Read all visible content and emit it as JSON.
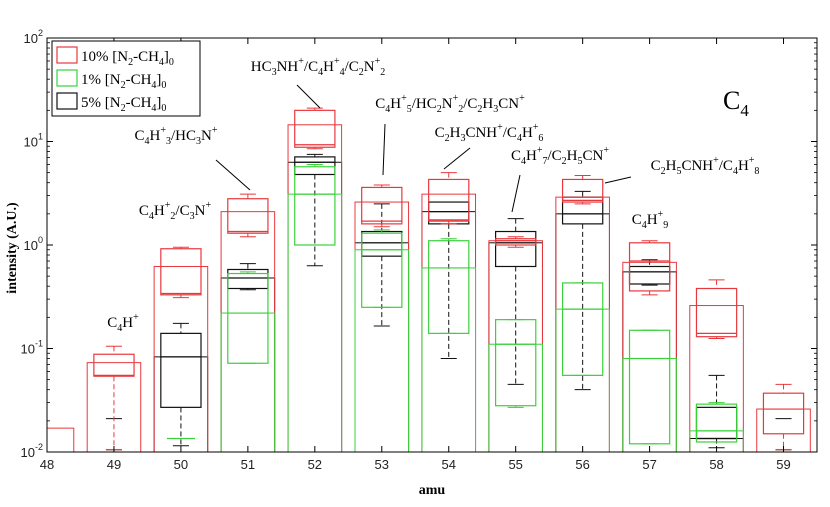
{
  "chart_data": {
    "type": "box",
    "title": "",
    "panel_label": "C4",
    "xlabel": "amu",
    "ylabel": "intensity (A.U.)",
    "yscale": "log",
    "ylim": [
      0.01,
      100
    ],
    "xlim": [
      48,
      59.5
    ],
    "categories": [
      "48",
      "49",
      "50",
      "51",
      "52",
      "53",
      "54",
      "55",
      "56",
      "57",
      "58",
      "59"
    ],
    "y_ticks": [
      {
        "value": 0.01,
        "base": "10",
        "exp": "-2"
      },
      {
        "value": 0.1,
        "base": "10",
        "exp": "-1"
      },
      {
        "value": 1,
        "base": "10",
        "exp": "0"
      },
      {
        "value": 10,
        "base": "10",
        "exp": "1"
      },
      {
        "value": 100,
        "base": "10",
        "exp": "2"
      }
    ],
    "series": [
      {
        "name": "10% [N2-CH4]0",
        "color": "#e8383d",
        "boxes": [
          {
            "x": 48,
            "bar": 0.017,
            "q1": null,
            "median": null,
            "q3": null,
            "wlo": null,
            "whi": null
          },
          {
            "x": 49,
            "bar": 0.073,
            "q1": 0.054,
            "median": 0.055,
            "q3": 0.088,
            "wlo": 0.0105,
            "whi": 0.105
          },
          {
            "x": 50,
            "bar": 0.62,
            "q1": 0.33,
            "median": 0.34,
            "q3": 0.92,
            "wlo": 0.31,
            "whi": 0.95
          },
          {
            "x": 51,
            "bar": 2.1,
            "q1": 1.3,
            "median": 1.35,
            "q3": 2.8,
            "wlo": 1.2,
            "whi": 3.1
          },
          {
            "x": 52,
            "bar": 14.5,
            "q1": 8.8,
            "median": 9.3,
            "q3": 20.0,
            "wlo": 8.5,
            "whi": 21.0
          },
          {
            "x": 53,
            "bar": 2.6,
            "q1": 1.6,
            "median": 1.7,
            "q3": 3.6,
            "wlo": 1.5,
            "whi": 3.8
          },
          {
            "x": 54,
            "bar": 3.1,
            "q1": 1.7,
            "median": 1.75,
            "q3": 4.3,
            "wlo": 1.6,
            "whi": 5.0
          },
          {
            "x": 55,
            "bar": 1.1,
            "q1": 1.0,
            "median": 1.1,
            "q3": 1.15,
            "wlo": 0.95,
            "whi": 1.2
          },
          {
            "x": 56,
            "bar": 2.9,
            "q1": 2.6,
            "median": 2.7,
            "q3": 4.3,
            "wlo": 2.5,
            "whi": 4.7
          },
          {
            "x": 57,
            "bar": 0.68,
            "q1": 0.36,
            "median": 0.7,
            "q3": 1.05,
            "wlo": 0.33,
            "whi": 1.1
          },
          {
            "x": 58,
            "bar": 0.26,
            "q1": 0.13,
            "median": 0.14,
            "q3": 0.38,
            "wlo": 0.125,
            "whi": 0.46
          },
          {
            "x": 59,
            "bar": 0.026,
            "q1": 0.015,
            "median": 0.026,
            "q3": 0.037,
            "wlo": 0.0105,
            "whi": 0.045
          }
        ]
      },
      {
        "name": "1% [N2-CH4]0",
        "color": "#3ad13a",
        "boxes": [
          {
            "x": 50,
            "bar": null,
            "q1": null,
            "median": 0.0135,
            "q3": null,
            "wlo": null,
            "whi": null
          },
          {
            "x": 51,
            "bar": 0.22,
            "q1": 0.072,
            "median": 0.22,
            "q3": 0.53,
            "wlo": 0.072,
            "whi": 0.55
          },
          {
            "x": 52,
            "bar": 3.1,
            "q1": 1.0,
            "median": 3.1,
            "q3": 5.7,
            "wlo": 1.0,
            "whi": 6.0
          },
          {
            "x": 53,
            "bar": 0.9,
            "q1": 0.25,
            "median": 0.9,
            "q3": 1.3,
            "wlo": 0.25,
            "whi": 1.4
          },
          {
            "x": 54,
            "bar": 0.6,
            "q1": 0.14,
            "median": 0.6,
            "q3": 1.1,
            "wlo": 0.14,
            "whi": 1.15
          },
          {
            "x": 55,
            "bar": 0.11,
            "q1": 0.028,
            "median": 0.11,
            "q3": 0.19,
            "wlo": 0.027,
            "whi": 0.19
          },
          {
            "x": 56,
            "bar": 0.24,
            "q1": 0.055,
            "median": 0.24,
            "q3": 0.43,
            "wlo": 0.055,
            "whi": 0.43
          },
          {
            "x": 57,
            "bar": 0.08,
            "q1": 0.012,
            "median": 0.08,
            "q3": 0.15,
            "wlo": 0.012,
            "whi": 0.15
          },
          {
            "x": 58,
            "bar": 0.016,
            "q1": 0.0125,
            "median": 0.016,
            "q3": 0.029,
            "wlo": 0.0125,
            "whi": 0.03
          }
        ]
      },
      {
        "name": "5% [N2-CH4]0",
        "color": "#111111",
        "boxes": [
          {
            "x": 49,
            "bar": null,
            "q1": null,
            "median": null,
            "q3": null,
            "wlo": 0.0105,
            "whi": 0.021
          },
          {
            "x": 50,
            "bar": 0.083,
            "q1": 0.027,
            "median": 0.083,
            "q3": 0.14,
            "wlo": 0.0115,
            "whi": 0.175
          },
          {
            "x": 51,
            "bar": 0.48,
            "q1": 0.38,
            "median": 0.48,
            "q3": 0.58,
            "wlo": 0.37,
            "whi": 0.66
          },
          {
            "x": 52,
            "bar": 6.3,
            "q1": 4.8,
            "median": 6.3,
            "q3": 7.1,
            "wlo": 0.63,
            "whi": 7.5
          },
          {
            "x": 53,
            "bar": 1.05,
            "q1": 0.78,
            "median": 1.05,
            "q3": 1.35,
            "wlo": 0.165,
            "whi": 2.5
          },
          {
            "x": 54,
            "bar": 2.1,
            "q1": 1.6,
            "median": 2.1,
            "q3": 2.6,
            "wlo": 0.08,
            "whi": 2.6
          },
          {
            "x": 55,
            "bar": 1.05,
            "q1": 0.62,
            "median": 1.05,
            "q3": 1.35,
            "wlo": 0.045,
            "whi": 1.8
          },
          {
            "x": 56,
            "bar": 2.0,
            "q1": 1.6,
            "median": 2.0,
            "q3": 2.9,
            "wlo": 0.04,
            "whi": 3.3
          },
          {
            "x": 57,
            "bar": 0.55,
            "q1": 0.42,
            "median": 0.55,
            "q3": 0.62,
            "wlo": 0.41,
            "whi": 0.72
          },
          {
            "x": 58,
            "bar": 0.0135,
            "q1": 0.0135,
            "median": 0.0135,
            "q3": 0.027,
            "wlo": 0.011,
            "whi": 0.055
          },
          {
            "x": 59,
            "bar": null,
            "q1": null,
            "median": null,
            "q3": null,
            "wlo": 0.0105,
            "whi": 0.021
          }
        ]
      }
    ],
    "legend": {
      "position": "top-left",
      "items": [
        {
          "color": "#e8383d",
          "pct": "10%",
          "label": "[N",
          "sub1": "2",
          "mid": "-CH",
          "sub2": "4",
          "end": "]",
          "sub3": "0"
        },
        {
          "color": "#3ad13a",
          "pct": "1%",
          "label": "[N",
          "sub1": "2",
          "mid": "-CH",
          "sub2": "4",
          "end": "]",
          "sub3": "0"
        },
        {
          "color": "#111111",
          "pct": "5%",
          "label": "[N",
          "sub1": "2",
          "mid": "-CH",
          "sub2": "4",
          "end": "]",
          "sub3": "0"
        }
      ]
    },
    "annotations": [
      {
        "amu": 49,
        "parts": [
          [
            "C"
          ],
          [
            "4",
            "sub"
          ],
          [
            "H"
          ],
          [
            "+",
            "sup"
          ]
        ]
      },
      {
        "amu": 50,
        "parts": [
          [
            "C"
          ],
          [
            "4",
            "sub"
          ],
          [
            "H"
          ],
          [
            "+",
            "sup"
          ],
          [
            "2",
            "sub"
          ],
          [
            "/C"
          ],
          [
            "3",
            "sub"
          ],
          [
            "N"
          ],
          [
            "+",
            "sup"
          ]
        ]
      },
      {
        "amu": 51,
        "parts": [
          [
            "C"
          ],
          [
            "4",
            "sub"
          ],
          [
            "H"
          ],
          [
            "+",
            "sup"
          ],
          [
            "3",
            "sub"
          ],
          [
            "/HC"
          ],
          [
            "3",
            "sub"
          ],
          [
            "N"
          ],
          [
            "+",
            "sup"
          ]
        ]
      },
      {
        "amu": 52,
        "parts": [
          [
            "HC"
          ],
          [
            "3",
            "sub"
          ],
          [
            "NH"
          ],
          [
            "+",
            "sup"
          ],
          [
            "/C"
          ],
          [
            "4",
            "sub"
          ],
          [
            "H"
          ],
          [
            "+",
            "sup"
          ],
          [
            "4",
            "sub"
          ],
          [
            "/C"
          ],
          [
            "2",
            "sub"
          ],
          [
            "N"
          ],
          [
            "+",
            "sup"
          ],
          [
            "2",
            "sub"
          ]
        ]
      },
      {
        "amu": 53,
        "parts": [
          [
            "C"
          ],
          [
            "4",
            "sub"
          ],
          [
            "H"
          ],
          [
            "+",
            "sup"
          ],
          [
            "5",
            "sub"
          ],
          [
            "/HC"
          ],
          [
            "2",
            "sub"
          ],
          [
            "N"
          ],
          [
            "+",
            "sup"
          ],
          [
            "2",
            "sub"
          ],
          [
            "/C"
          ],
          [
            "2",
            "sub"
          ],
          [
            "H"
          ],
          [
            "3",
            "sub"
          ],
          [
            "CN"
          ],
          [
            "+",
            "sup"
          ]
        ]
      },
      {
        "amu": 54,
        "parts": [
          [
            "C"
          ],
          [
            "2",
            "sub"
          ],
          [
            "H"
          ],
          [
            "3",
            "sub"
          ],
          [
            "CNH"
          ],
          [
            "+",
            "sup"
          ],
          [
            "/C"
          ],
          [
            "4",
            "sub"
          ],
          [
            "H"
          ],
          [
            "+",
            "sup"
          ],
          [
            "6",
            "sub"
          ]
        ]
      },
      {
        "amu": 55,
        "parts": [
          [
            "C"
          ],
          [
            "4",
            "sub"
          ],
          [
            "H"
          ],
          [
            "+",
            "sup"
          ],
          [
            "7",
            "sub"
          ],
          [
            "/C"
          ],
          [
            "2",
            "sub"
          ],
          [
            "H"
          ],
          [
            "5",
            "sub"
          ],
          [
            "CN"
          ],
          [
            "+",
            "sup"
          ]
        ]
      },
      {
        "amu": 56,
        "parts": [
          [
            "C"
          ],
          [
            "2",
            "sub"
          ],
          [
            "H"
          ],
          [
            "5",
            "sub"
          ],
          [
            "CNH"
          ],
          [
            "+",
            "sup"
          ],
          [
            "/C"
          ],
          [
            "4",
            "sub"
          ],
          [
            "H"
          ],
          [
            "+",
            "sup"
          ],
          [
            "8",
            "sub"
          ]
        ]
      },
      {
        "amu": 57,
        "parts": [
          [
            "C"
          ],
          [
            "4",
            "sub"
          ],
          [
            "H"
          ],
          [
            "+",
            "sup"
          ],
          [
            "9",
            "sub"
          ]
        ]
      }
    ]
  }
}
